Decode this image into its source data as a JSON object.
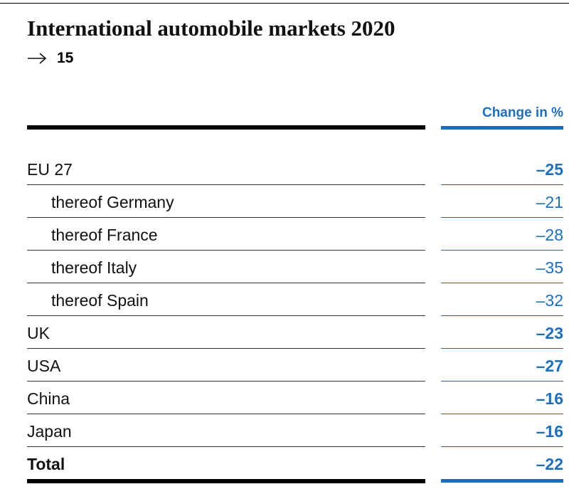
{
  "header": {
    "title": "International automobile markets 2020",
    "reference": "15",
    "column_heading": "Change in %"
  },
  "table": {
    "rows": [
      {
        "label": "EU 27",
        "value": "–25",
        "subrows": [
          {
            "label": "thereof Germany",
            "value": "–21"
          },
          {
            "label": "thereof France",
            "value": "–28"
          },
          {
            "label": "thereof Italy",
            "value": "–35"
          },
          {
            "label": "thereof Spain",
            "value": "–32"
          }
        ]
      },
      {
        "label": "UK",
        "value": "–23"
      },
      {
        "label": "USA",
        "value": "–27"
      },
      {
        "label": "China",
        "value": "–16"
      },
      {
        "label": "Japan",
        "value": "–16"
      }
    ],
    "total": {
      "label": "Total",
      "value": "–22"
    }
  }
}
